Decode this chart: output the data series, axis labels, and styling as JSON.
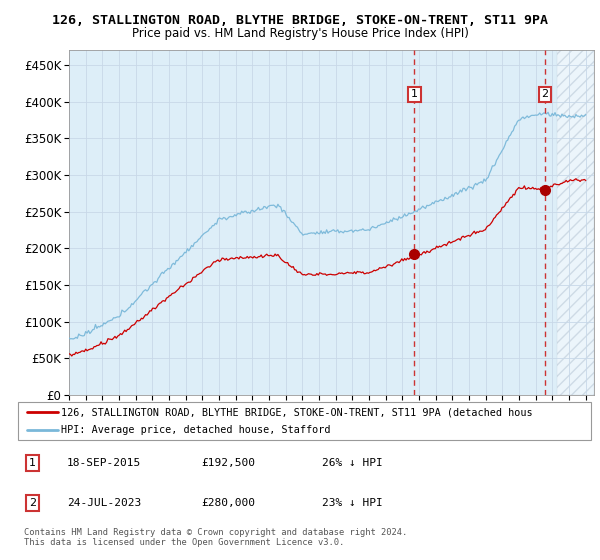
{
  "title1": "126, STALLINGTON ROAD, BLYTHE BRIDGE, STOKE-ON-TRENT, ST11 9PA",
  "title2": "Price paid vs. HM Land Registry's House Price Index (HPI)",
  "ylim": [
    0,
    470000
  ],
  "yticks": [
    0,
    50000,
    100000,
    150000,
    200000,
    250000,
    300000,
    350000,
    400000,
    450000
  ],
  "ytick_labels": [
    "£0",
    "£50K",
    "£100K",
    "£150K",
    "£200K",
    "£250K",
    "£300K",
    "£350K",
    "£400K",
    "£450K"
  ],
  "xlim_start": 1995.0,
  "xlim_end": 2026.5,
  "sale1_date": 2015.72,
  "sale1_price": 192500,
  "sale1_label": "1",
  "sale2_date": 2023.56,
  "sale2_price": 280000,
  "sale2_label": "2",
  "hpi_color": "#7ab8d9",
  "price_color": "#cc0000",
  "sale_marker_color": "#aa0000",
  "vline_color": "#cc3333",
  "grid_color": "#c8d8e8",
  "bg_color": "#ddeef8",
  "legend_line1": "126, STALLINGTON ROAD, BLYTHE BRIDGE, STOKE-ON-TRENT, ST11 9PA (detached hous",
  "legend_line2": "HPI: Average price, detached house, Stafford",
  "footnote": "Contains HM Land Registry data © Crown copyright and database right 2024.\nThis data is licensed under the Open Government Licence v3.0.",
  "table": [
    {
      "num": "1",
      "date": "18-SEP-2015",
      "price": "£192,500",
      "pct": "26% ↓ HPI"
    },
    {
      "num": "2",
      "date": "24-JUL-2023",
      "price": "£280,000",
      "pct": "23% ↓ HPI"
    }
  ]
}
